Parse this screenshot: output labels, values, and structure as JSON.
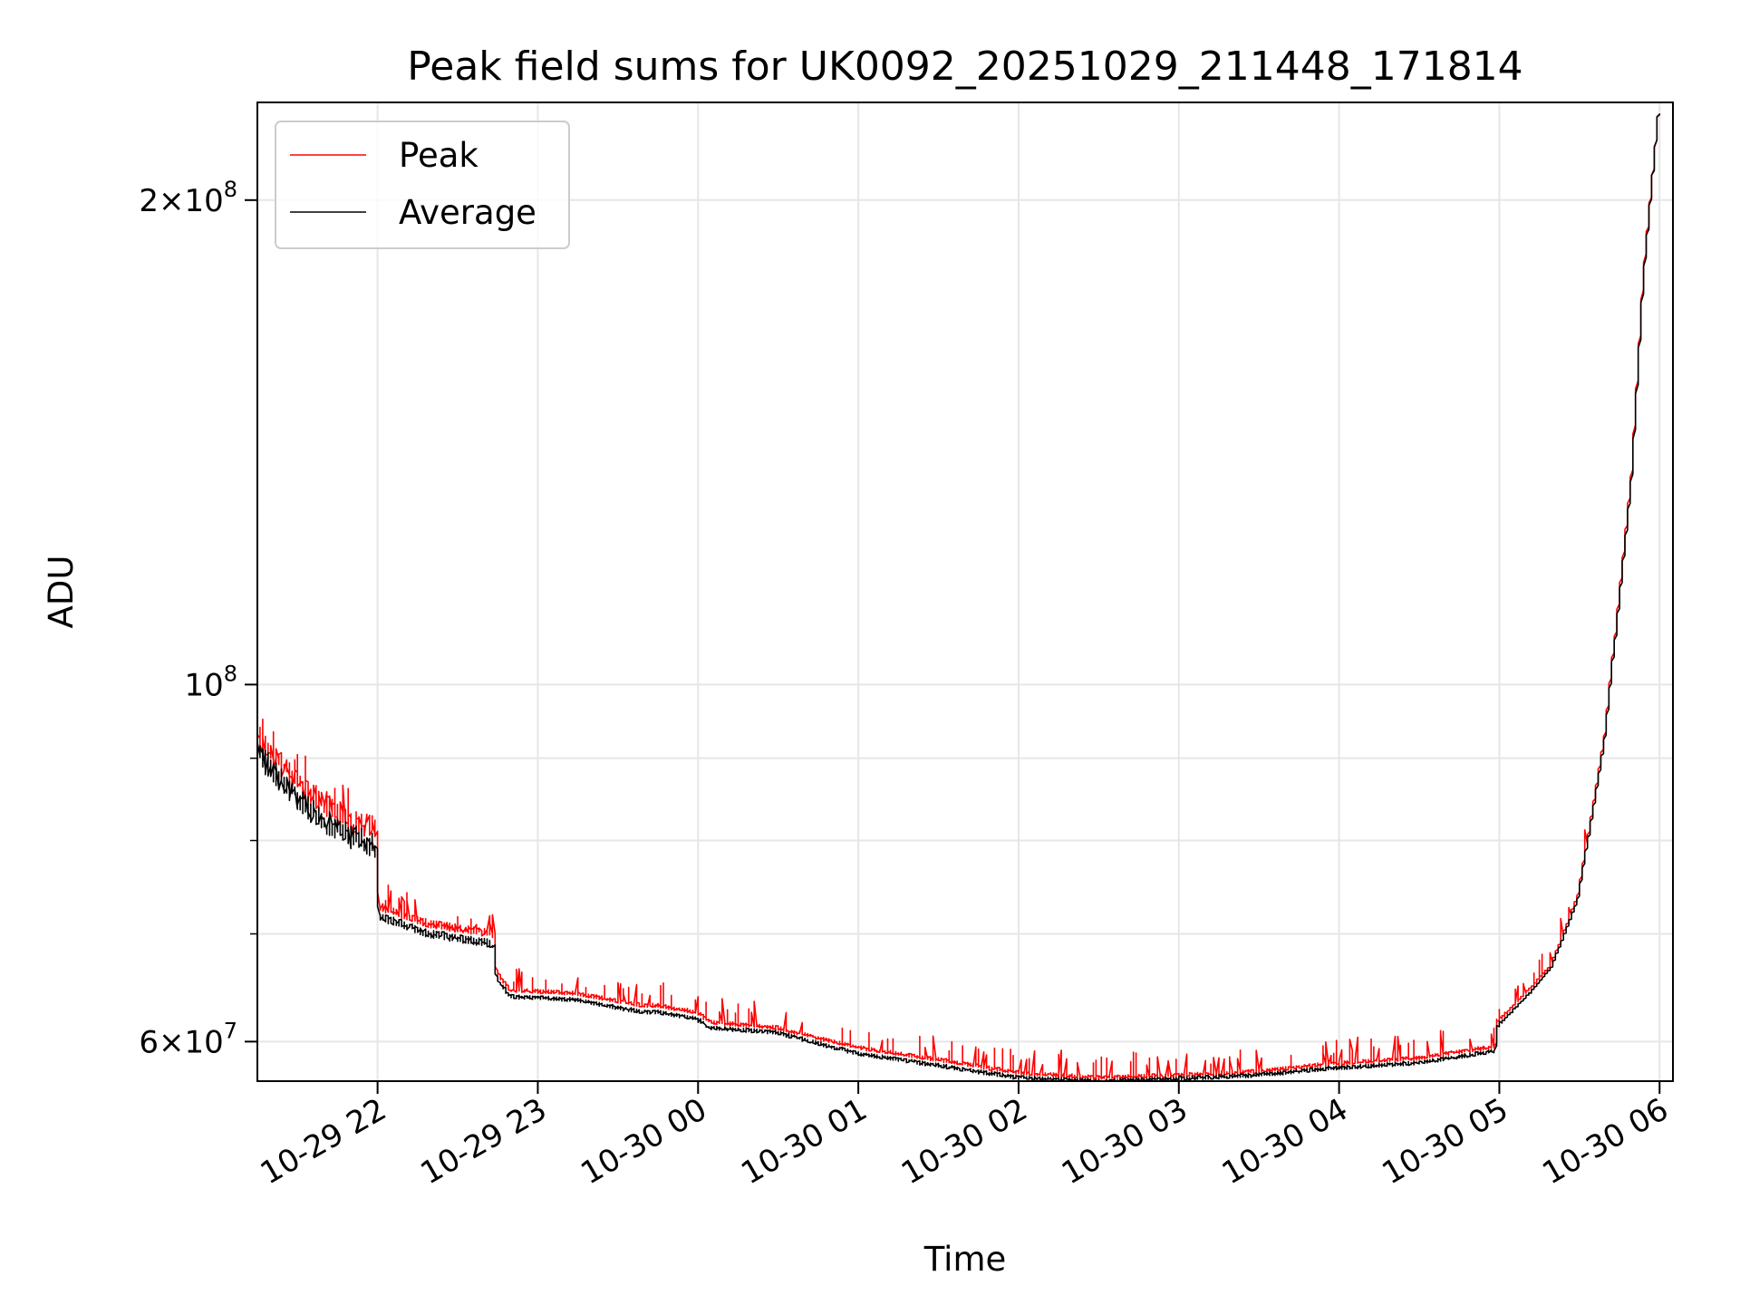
{
  "chart_data": {
    "type": "line",
    "title": "Peak field sums for UK0092_20251029_211448_171814",
    "xlabel": "Time",
    "ylabel": "ADU",
    "y_scale": "log",
    "ylim": [
      56700000,
      230000000
    ],
    "xlim": [
      "2025-10-29 21:15",
      "2025-10-30 06:05"
    ],
    "grid": true,
    "legend_position": "upper left",
    "x_tick_labels": [
      "10-29 22",
      "10-29 23",
      "10-30 00",
      "10-30 01",
      "10-30 02",
      "10-30 03",
      "10-30 04",
      "10-30 05",
      "10-30 06"
    ],
    "x_tick_values": [
      "2025-10-29 22:00",
      "2025-10-29 23:00",
      "2025-10-30 00:00",
      "2025-10-30 01:00",
      "2025-10-30 02:00",
      "2025-10-30 03:00",
      "2025-10-30 04:00",
      "2025-10-30 05:00",
      "2025-10-30 06:00"
    ],
    "y_major_ticks": [
      {
        "value": 60000000,
        "mantissa": "6",
        "exponent": "7"
      },
      {
        "value": 100000000,
        "mantissa": "",
        "exponent": "8"
      },
      {
        "value": 200000000,
        "mantissa": "2",
        "exponent": "8"
      }
    ],
    "y_minor_ticks": [
      70000000,
      80000000,
      90000000
    ],
    "series": [
      {
        "name": "Peak",
        "color": "#ff0000",
        "x": [
          "2025-10-29 21:15",
          "2025-10-29 21:20",
          "2025-10-29 21:30",
          "2025-10-29 21:40",
          "2025-10-29 21:50",
          "2025-10-29 21:59",
          "2025-10-29 22:00",
          "2025-10-29 22:01",
          "2025-10-29 22:20",
          "2025-10-29 22:44",
          "2025-10-29 22:45",
          "2025-10-29 22:50",
          "2025-10-29 23:15",
          "2025-10-29 23:30",
          "2025-10-29 23:40",
          "2025-10-29 23:45",
          "2025-10-30 00:00",
          "2025-10-30 00:05",
          "2025-10-30 00:30",
          "2025-10-30 01:00",
          "2025-10-30 01:30",
          "2025-10-30 02:00",
          "2025-10-30 02:30",
          "2025-10-30 03:00",
          "2025-10-30 03:30",
          "2025-10-30 04:00",
          "2025-10-30 04:30",
          "2025-10-30 04:59",
          "2025-10-30 05:00",
          "2025-10-30 05:10",
          "2025-10-30 05:20",
          "2025-10-30 05:30",
          "2025-10-30 05:40",
          "2025-10-30 05:50",
          "2025-10-30 05:55",
          "2025-10-30 06:00"
        ],
        "values": [
          93000000,
          91000000,
          87000000,
          84500000,
          82500000,
          81500000,
          81500000,
          72800000,
          71000000,
          70000000,
          66300000,
          64600000,
          64300000,
          63600000,
          63200000,
          63200000,
          62600000,
          61700000,
          61200000,
          59500000,
          58500000,
          57400000,
          57000000,
          57200000,
          57500000,
          58200000,
          58600000,
          59600000,
          61800000,
          64200000,
          67000000,
          74000000,
          93000000,
          135000000,
          185000000,
          226000000
        ]
      },
      {
        "name": "Average",
        "color": "#000000",
        "x": [
          "2025-10-29 21:15",
          "2025-10-29 21:20",
          "2025-10-29 21:30",
          "2025-10-29 21:40",
          "2025-10-29 21:50",
          "2025-10-29 21:59",
          "2025-10-29 22:00",
          "2025-10-29 22:01",
          "2025-10-29 22:20",
          "2025-10-29 22:44",
          "2025-10-29 22:45",
          "2025-10-29 22:50",
          "2025-10-29 23:15",
          "2025-10-29 23:30",
          "2025-10-29 23:40",
          "2025-10-29 23:45",
          "2025-10-30 00:00",
          "2025-10-30 00:05",
          "2025-10-30 00:30",
          "2025-10-30 01:00",
          "2025-10-30 01:30",
          "2025-10-30 02:00",
          "2025-10-30 02:30",
          "2025-10-30 03:00",
          "2025-10-30 03:30",
          "2025-10-30 04:00",
          "2025-10-30 04:30",
          "2025-10-30 04:59",
          "2025-10-30 05:00",
          "2025-10-30 05:10",
          "2025-10-30 05:20",
          "2025-10-30 05:30",
          "2025-10-30 05:40",
          "2025-10-30 05:50",
          "2025-10-30 05:55",
          "2025-10-30 06:00"
        ],
        "values": [
          91000000,
          89000000,
          85000000,
          82500000,
          80500000,
          79500000,
          79500000,
          71800000,
          70000000,
          69000000,
          65700000,
          64000000,
          63700000,
          63000000,
          62600000,
          62600000,
          62000000,
          61200000,
          60800000,
          59000000,
          58000000,
          57000000,
          56700000,
          56900000,
          57200000,
          57800000,
          58200000,
          59200000,
          61400000,
          63800000,
          66700000,
          73600000,
          92500000,
          134000000,
          184000000,
          226000000
        ]
      }
    ]
  }
}
